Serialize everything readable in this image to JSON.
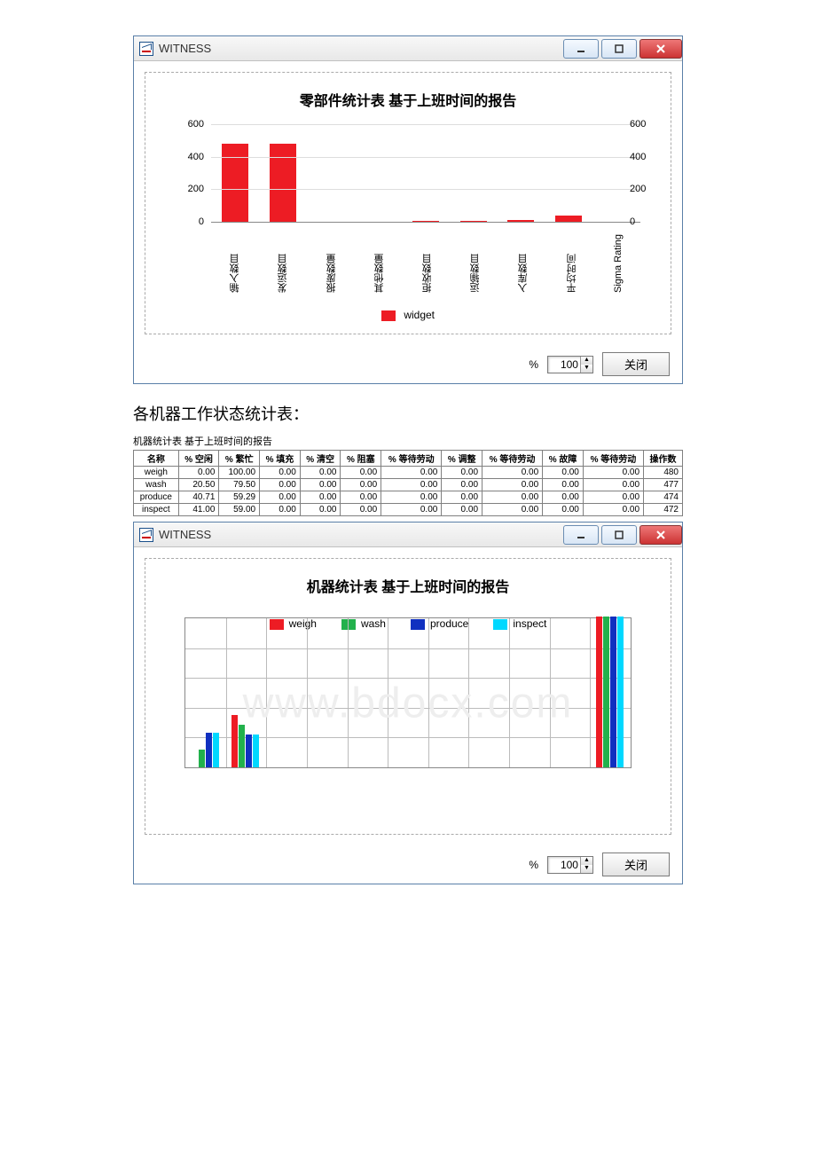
{
  "app_title": "WITNESS",
  "section_heading": "各机器工作状态统计表：",
  "percent_label": "%",
  "percent_value": "100",
  "close_label": "关闭",
  "watermark_text": "www.bdocx.com",
  "chart1": {
    "type": "bar",
    "title": "零部件统计表  基于上班时间的报告",
    "ylim": [
      0,
      600
    ],
    "yticks": [
      0,
      200,
      400,
      600
    ],
    "categories": [
      "输入数目",
      "发运数目",
      "报废数量",
      "其他数量",
      "拒收数目",
      "运输数目",
      "入库数目",
      "平均时间",
      "Sigma Rating"
    ],
    "values": [
      480,
      478,
      0,
      0,
      8,
      5,
      10,
      40,
      0
    ],
    "bar_color": "#ed1c24",
    "axis_color": "#888888",
    "legend_label": "widget"
  },
  "stats_table": {
    "caption": "机器统计表    基于上班时间的报告",
    "columns": [
      "名称",
      "% 空闲",
      "% 繁忙",
      "% 填充",
      "% 清空",
      "% 阻塞",
      "% 等待劳动",
      "% 调整",
      "% 等待劳动",
      "% 故障",
      "% 等待劳动",
      "操作数"
    ],
    "rows": [
      [
        "weigh",
        "0.00",
        "100.00",
        "0.00",
        "0.00",
        "0.00",
        "0.00",
        "0.00",
        "0.00",
        "0.00",
        "0.00",
        "480"
      ],
      [
        "wash",
        "20.50",
        "79.50",
        "0.00",
        "0.00",
        "0.00",
        "0.00",
        "0.00",
        "0.00",
        "0.00",
        "0.00",
        "477"
      ],
      [
        "produce",
        "40.71",
        "59.29",
        "0.00",
        "0.00",
        "0.00",
        "0.00",
        "0.00",
        "0.00",
        "0.00",
        "0.00",
        "474"
      ],
      [
        "inspect",
        "41.00",
        "59.00",
        "0.00",
        "0.00",
        "0.00",
        "0.00",
        "0.00",
        "0.00",
        "0.00",
        "0.00",
        "472"
      ]
    ]
  },
  "chart2": {
    "type": "grouped-bar",
    "title": "机器统计表  基于上班时间的报告",
    "plot_rows": 5,
    "plot_cols": 11,
    "series": [
      {
        "label": "weigh",
        "color": "#ed1c24"
      },
      {
        "label": "wash",
        "color": "#22b14c"
      },
      {
        "label": "produce",
        "color": "#1030c0"
      },
      {
        "label": "inspect",
        "color": "#00d8ff"
      }
    ],
    "groups": [
      {
        "col": 0,
        "heights": [
          0,
          12,
          23,
          23
        ]
      },
      {
        "col": 1,
        "heights": [
          35,
          28,
          22,
          22
        ]
      },
      {
        "col": 10,
        "heights": [
          100,
          100,
          100,
          100
        ]
      }
    ],
    "ylim": [
      0,
      100
    ]
  }
}
